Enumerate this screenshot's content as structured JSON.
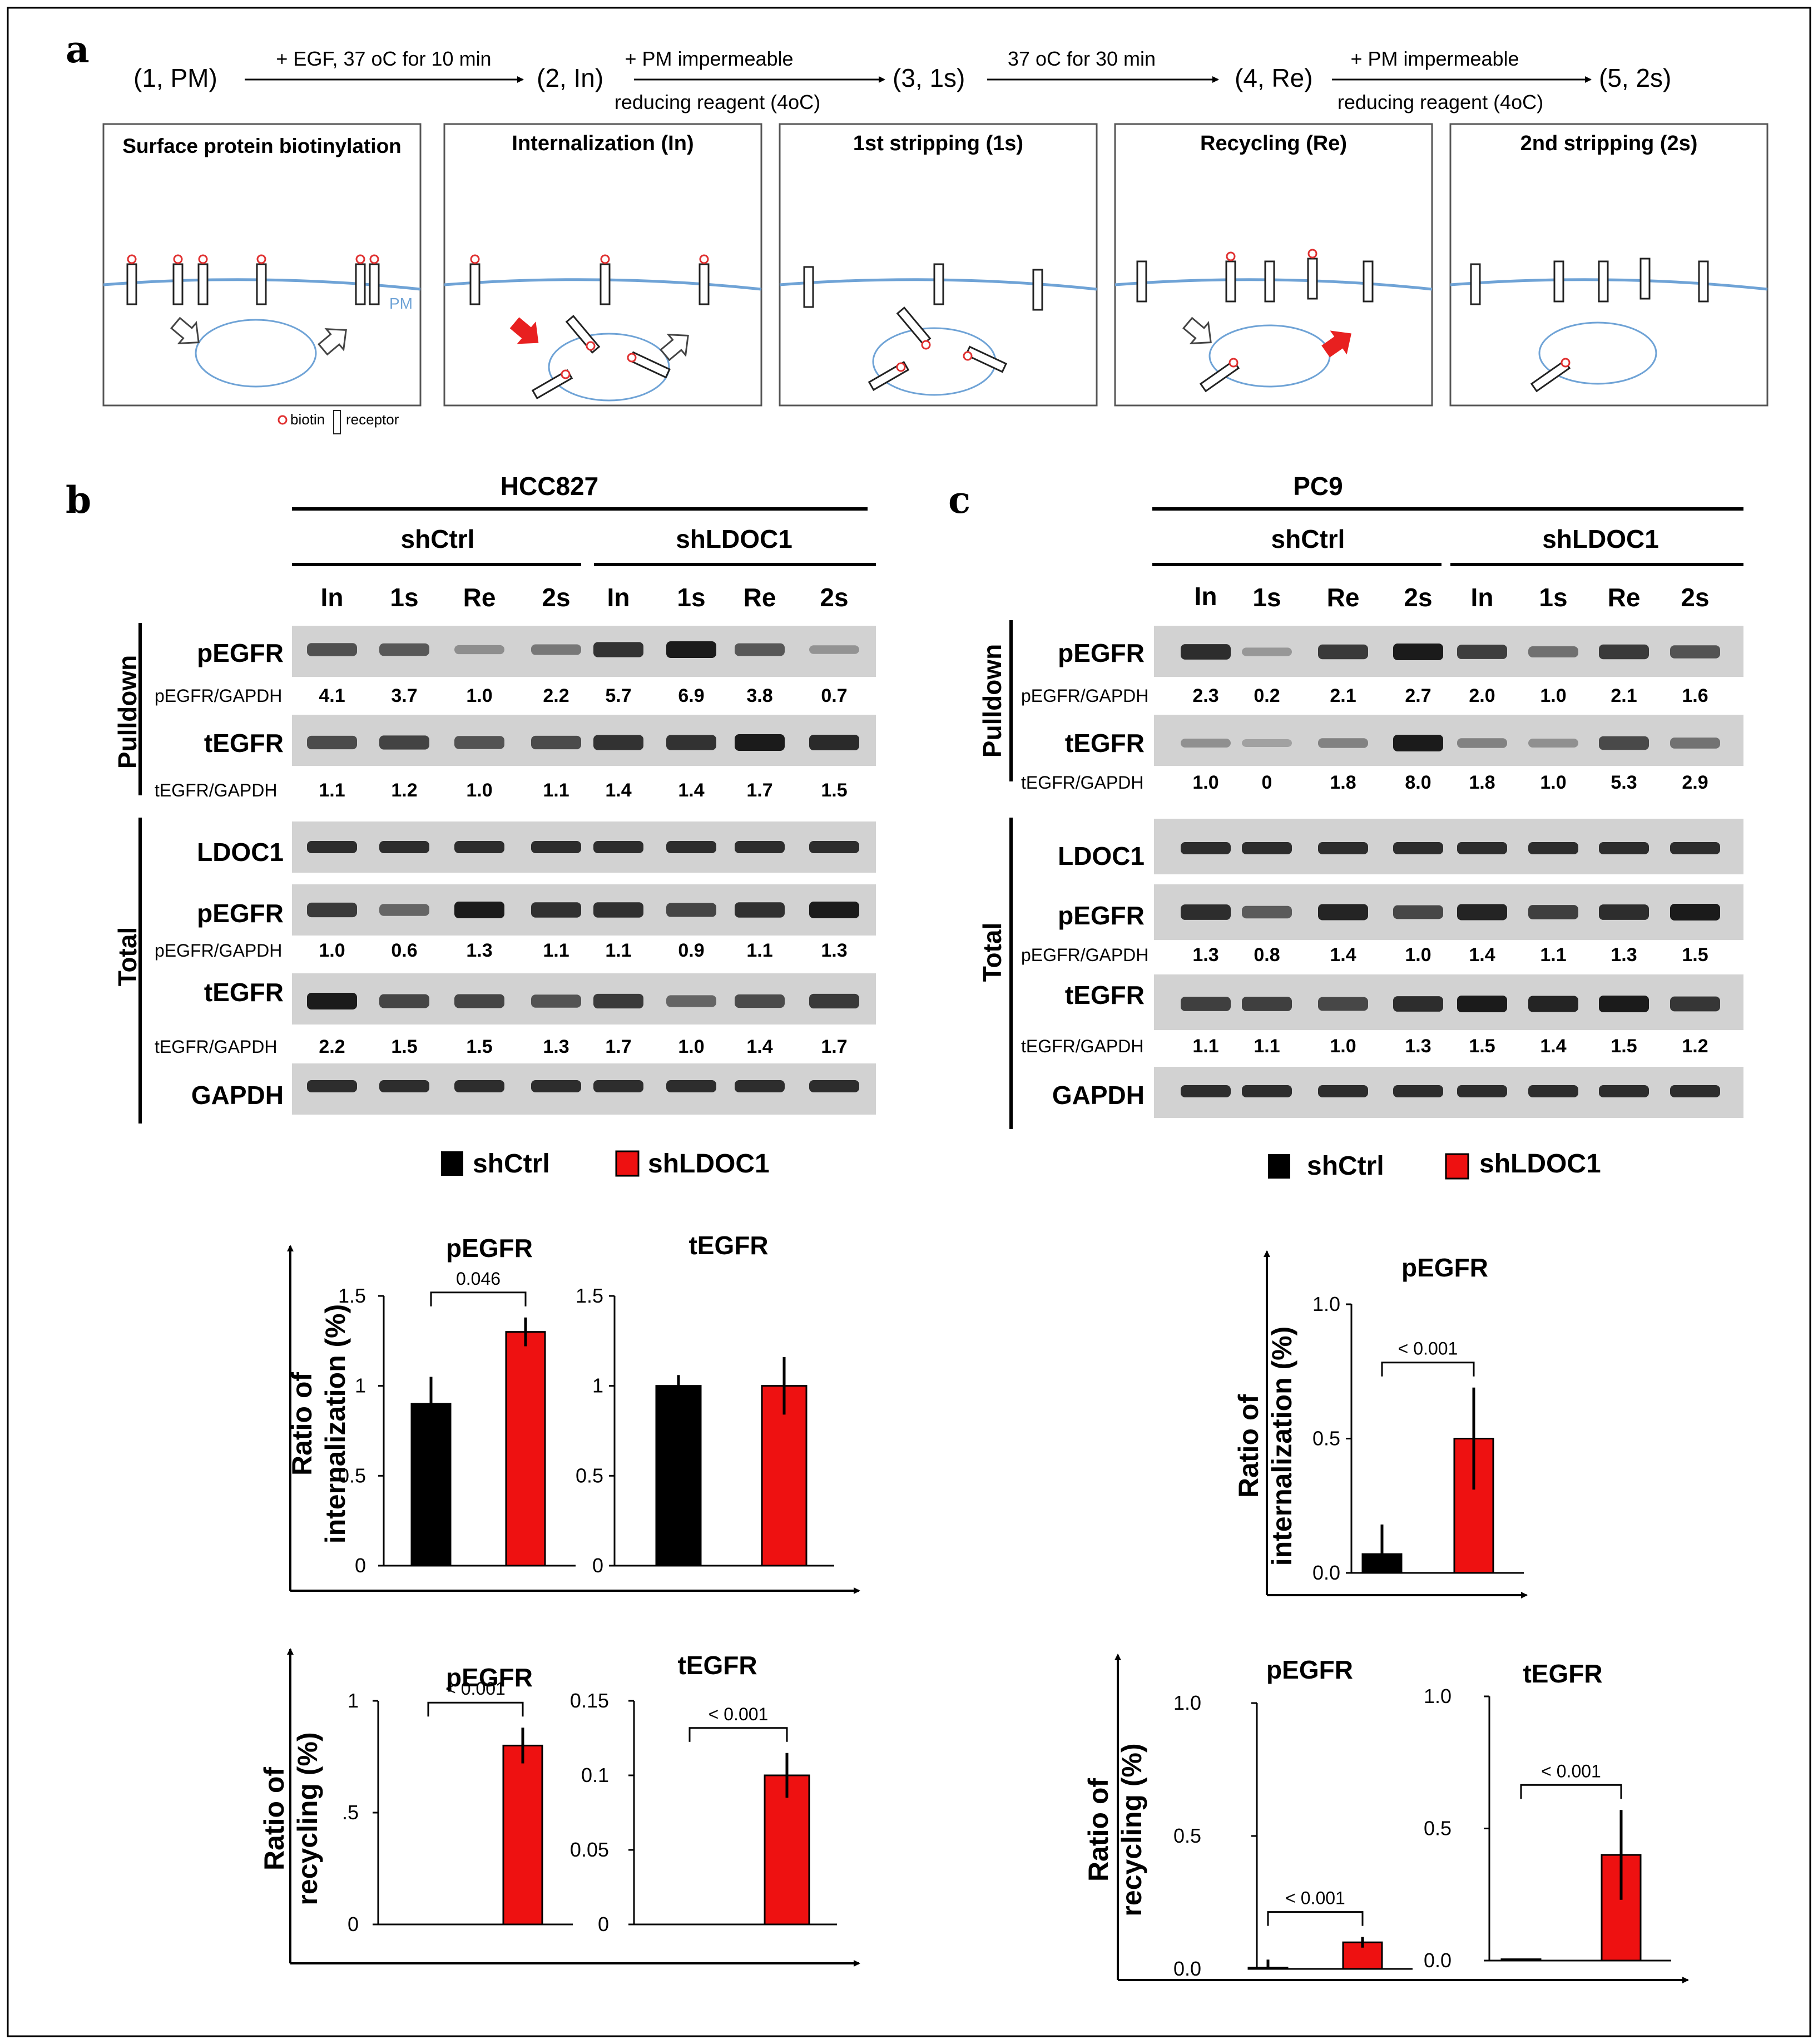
{
  "panel_letters": {
    "a": "a",
    "b": "b",
    "c": "c"
  },
  "workflow": {
    "steps": [
      "(1, PM)",
      "(2, In)",
      "(3, 1s)",
      "(4, Re)",
      "(5, 2s)"
    ],
    "arrows": [
      {
        "above": "+ EGF, 37 oC for 10 min",
        "below": ""
      },
      {
        "above": "+ PM impermeable",
        "below": "reducing reagent (4oC)"
      },
      {
        "above": "37 oC for 30 min",
        "below": ""
      },
      {
        "above": "+ PM impermeable",
        "below": "reducing reagent (4oC)"
      }
    ],
    "boxes": [
      "Surface protein biotinylation",
      "Internalization (In)",
      "1st stripping (1s)",
      "Recycling (Re)",
      "2nd stripping (2s)"
    ],
    "pm_label": "PM",
    "legend_biotin": "biotin",
    "legend_receptor": "receptor"
  },
  "panel_b": {
    "cell_line": "HCC827",
    "groups": [
      "shCtrl",
      "shLDOC1"
    ],
    "lanes": [
      "In",
      "1s",
      "Re",
      "2s",
      "In",
      "1s",
      "Re",
      "2s"
    ],
    "section_pulldown": "Pulldown",
    "section_total": "Total",
    "blots": [
      {
        "label": "pEGFR",
        "ratio_label": "pEGFR/GAPDH",
        "ratios": [
          "4.1",
          "3.7",
          "1.0",
          "2.2",
          "5.7",
          "6.9",
          "3.8",
          "0.7"
        ]
      },
      {
        "label": "tEGFR",
        "ratio_label": "tEGFR/GAPDH",
        "ratios": [
          "1.1",
          "1.2",
          "1.0",
          "1.1",
          "1.4",
          "1.4",
          "1.7",
          "1.5"
        ]
      },
      {
        "label": "LDOC1",
        "ratio_label": "",
        "ratios": []
      },
      {
        "label": "pEGFR",
        "ratio_label": "pEGFR/GAPDH",
        "ratios": [
          "1.0",
          "0.6",
          "1.3",
          "1.1",
          "1.1",
          "0.9",
          "1.1",
          "1.3"
        ]
      },
      {
        "label": "tEGFR",
        "ratio_label": "tEGFR/GAPDH",
        "ratios": [
          "2.2",
          "1.5",
          "1.5",
          "1.3",
          "1.7",
          "1.0",
          "1.4",
          "1.7"
        ]
      },
      {
        "label": "GAPDH",
        "ratio_label": "",
        "ratios": []
      }
    ],
    "legend": [
      "shCtrl",
      "shLDOC1"
    ],
    "internalization_ylabel": [
      "Ratio of",
      "internalization (%)"
    ],
    "recycling_ylabel": [
      "Ratio of",
      "recycling (%)"
    ]
  },
  "panel_c": {
    "cell_line": "PC9",
    "groups": [
      "shCtrl",
      "shLDOC1"
    ],
    "lanes": [
      "In",
      "1s",
      "Re",
      "2s",
      "In",
      "1s",
      "Re",
      "2s"
    ],
    "section_pulldown": "Pulldown",
    "section_total": "Total",
    "blots": [
      {
        "label": "pEGFR",
        "ratio_label": "pEGFR/GAPDH",
        "ratios": [
          "2.3",
          "0.2",
          "2.1",
          "2.7",
          "2.0",
          "1.0",
          "2.1",
          "1.6"
        ]
      },
      {
        "label": "tEGFR",
        "ratio_label": "tEGFR/GAPDH",
        "ratios": [
          "1.0",
          "0",
          "1.8",
          "8.0",
          "1.8",
          "1.0",
          "5.3",
          "2.9"
        ]
      },
      {
        "label": "LDOC1",
        "ratio_label": "",
        "ratios": []
      },
      {
        "label": "pEGFR",
        "ratio_label": "pEGFR/GAPDH",
        "ratios": [
          "1.3",
          "0.8",
          "1.4",
          "1.0",
          "1.4",
          "1.1",
          "1.3",
          "1.5"
        ]
      },
      {
        "label": "tEGFR",
        "ratio_label": "tEGFR/GAPDH",
        "ratios": [
          "1.1",
          "1.1",
          "1.0",
          "1.3",
          "1.5",
          "1.4",
          "1.5",
          "1.2"
        ]
      },
      {
        "label": "GAPDH",
        "ratio_label": "",
        "ratios": []
      }
    ],
    "legend": [
      "shCtrl",
      "shLDOC1"
    ],
    "internalization_ylabel": [
      "Ratio of",
      "internalization (%)"
    ],
    "recycling_ylabel": [
      "Ratio of",
      "recycling (%)"
    ]
  },
  "colors": {
    "shCtrl": "#000000",
    "shLDOC1": "#ee1111",
    "membrane": "#6fa3d6",
    "biotin": "#e03030"
  },
  "chart_data": [
    {
      "id": "b_int_p",
      "type": "bar",
      "title": "pEGFR",
      "categories": [
        "shCtrl",
        "shLDOC1"
      ],
      "values": [
        0.9,
        1.3
      ],
      "errors": [
        0.15,
        0.08
      ],
      "ylim": [
        0,
        1.5
      ],
      "yticks": [
        "0",
        "0.5",
        "1",
        "1.5"
      ],
      "pvalue": "0.046"
    },
    {
      "id": "b_int_t",
      "type": "bar",
      "title": "tEGFR",
      "categories": [
        "shCtrl",
        "shLDOC1"
      ],
      "values": [
        1.0,
        1.0
      ],
      "errors": [
        0.06,
        0.16
      ],
      "ylim": [
        0,
        1.5
      ],
      "yticks": [
        "0",
        "0.5",
        "1",
        "1.5"
      ],
      "pvalue": ""
    },
    {
      "id": "b_rec_p",
      "type": "bar",
      "title": "pEGFR",
      "categories": [
        "shCtrl",
        "shLDOC1"
      ],
      "values": [
        0,
        0.8
      ],
      "errors": [
        0,
        0.08
      ],
      "ylim": [
        0,
        1
      ],
      "yticks": [
        "0",
        ".5",
        "1"
      ],
      "pvalue": "< 0.001"
    },
    {
      "id": "b_rec_t",
      "type": "bar",
      "title": "tEGFR",
      "categories": [
        "shCtrl",
        "shLDOC1"
      ],
      "values": [
        0,
        0.1
      ],
      "errors": [
        0,
        0.015
      ],
      "ylim": [
        0,
        0.15
      ],
      "yticks": [
        "0",
        "0.05",
        "0.1",
        "0.15"
      ],
      "pvalue": "< 0.001"
    },
    {
      "id": "c_int_p",
      "type": "bar",
      "title": "pEGFR",
      "categories": [
        "shCtrl",
        "shLDOC1"
      ],
      "values": [
        0.07,
        0.5
      ],
      "errors": [
        0.11,
        0.19
      ],
      "ylim": [
        0,
        1.0
      ],
      "yticks": [
        "0.0",
        "0.5",
        "1.0"
      ],
      "pvalue": "< 0.001"
    },
    {
      "id": "c_rec_p",
      "type": "bar",
      "title": "pEGFR",
      "categories": [
        "shCtrl",
        "shLDOC1"
      ],
      "values": [
        0.005,
        0.1
      ],
      "errors": [
        0.03,
        0.02
      ],
      "ylim": [
        0,
        1.0
      ],
      "yticks": [
        "0.0",
        "0.5",
        "1.0"
      ],
      "pvalue": "< 0.001"
    },
    {
      "id": "c_rec_t",
      "type": "bar",
      "title": "tEGFR",
      "categories": [
        "shCtrl",
        "shLDOC1"
      ],
      "values": [
        0.005,
        0.4
      ],
      "errors": [
        0,
        0.17
      ],
      "ylim": [
        0,
        1.0
      ],
      "yticks": [
        "0.0",
        "0.5",
        "1.0"
      ],
      "pvalue": "< 0.001"
    }
  ]
}
